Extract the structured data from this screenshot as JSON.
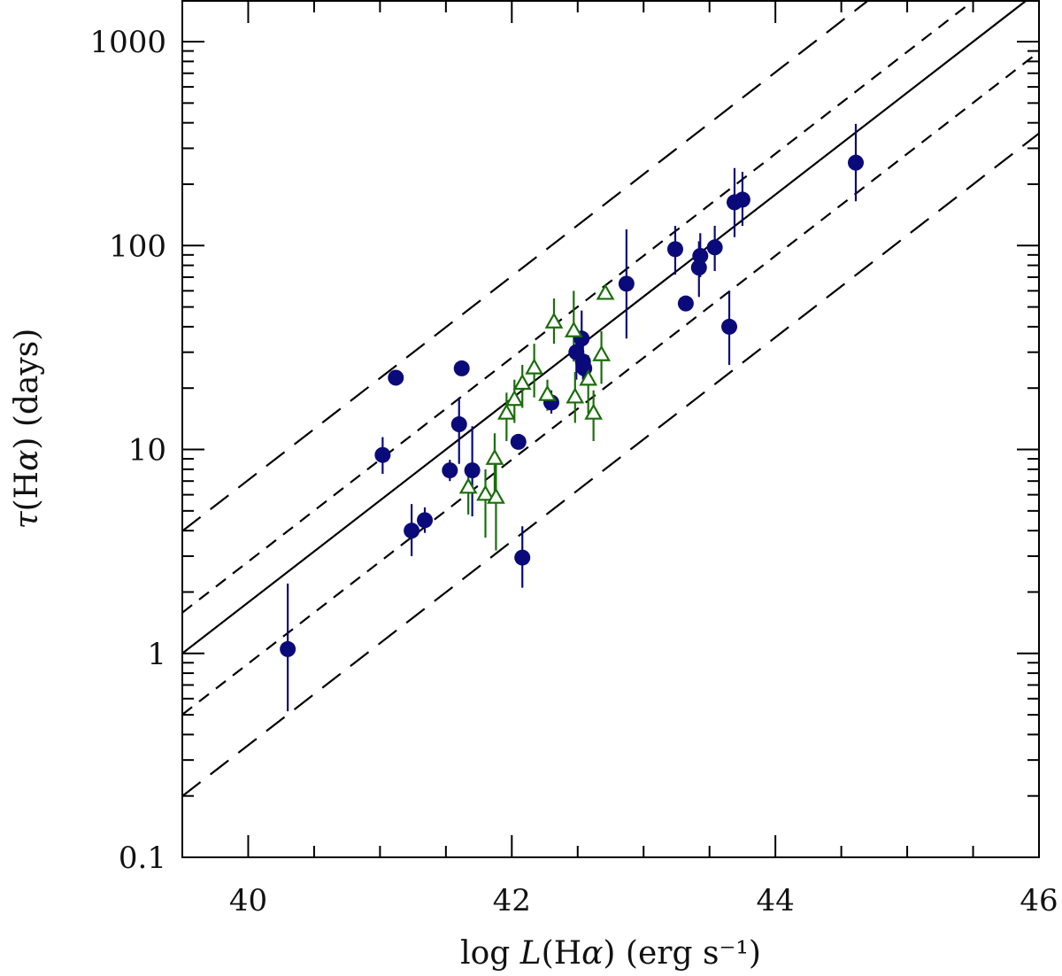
{
  "chart_data": {
    "type": "scatter",
    "title": "",
    "xlabel": {
      "prefix": "log ",
      "var": "L",
      "paren_open": "(H",
      "alpha": "α",
      "paren_close": ")",
      "units": " (erg s⁻¹)"
    },
    "ylabel": {
      "var": "τ",
      "paren_open": "(H",
      "alpha": "α",
      "paren_close": ")",
      "units": " (days)"
    },
    "xlim": [
      39.5,
      46.0
    ],
    "ylim_log10": [
      -1,
      3.2
    ],
    "yscale": "log",
    "x_major_ticks": [
      40,
      42,
      44,
      46
    ],
    "x_major_labels": [
      "40",
      "42",
      "44",
      "46"
    ],
    "x_minor_ticks": [
      39.5,
      40.5,
      41,
      41.5,
      42.5,
      43,
      43.5,
      44.5,
      45,
      45.5
    ],
    "y_major_ticks": [
      0.1,
      1,
      10,
      100,
      1000
    ],
    "y_major_labels": [
      "0.1",
      "1",
      "10",
      "100",
      "1000"
    ],
    "colors": {
      "circles": "#0a0a7a",
      "triangles": "#1a6e0a",
      "lines": "#000000"
    },
    "relation": {
      "slope": 0.5,
      "anchor_x": 39.5,
      "anchor_log_tau": 0.0,
      "lines": [
        {
          "name": "best-fit",
          "offset_dex": 0.0,
          "style": "solid"
        },
        {
          "name": "plus-1-sigma",
          "offset_dex": 0.2,
          "style": "short-dash"
        },
        {
          "name": "minus-1-sigma",
          "offset_dex": -0.3,
          "style": "short-dash"
        },
        {
          "name": "plus-2-sigma",
          "offset_dex": 0.6,
          "style": "long-dash"
        },
        {
          "name": "minus-2-sigma",
          "offset_dex": -0.7,
          "style": "long-dash"
        }
      ]
    },
    "series": [
      {
        "name": "circles",
        "marker": "filled-circle",
        "points": [
          {
            "x": 40.3,
            "y": 1.05,
            "ylo": 0.52,
            "yhi": 2.2
          },
          {
            "x": 41.02,
            "y": 9.4,
            "ylo": 7.6,
            "yhi": 11.5
          },
          {
            "x": 41.12,
            "y": 22.5,
            "ylo": 22.5,
            "yhi": 22.5
          },
          {
            "x": 41.24,
            "y": 4.0,
            "ylo": 3.0,
            "yhi": 5.4
          },
          {
            "x": 41.34,
            "y": 4.5,
            "ylo": 3.9,
            "yhi": 5.2
          },
          {
            "x": 41.53,
            "y": 7.9,
            "ylo": 7.0,
            "yhi": 8.9
          },
          {
            "x": 41.6,
            "y": 13.3,
            "ylo": 8.5,
            "yhi": 18.0
          },
          {
            "x": 41.62,
            "y": 25.0,
            "ylo": 25.0,
            "yhi": 25.0
          },
          {
            "x": 41.7,
            "y": 7.9,
            "ylo": 4.7,
            "yhi": 13.0
          },
          {
            "x": 42.05,
            "y": 10.9,
            "ylo": 10.0,
            "yhi": 11.8
          },
          {
            "x": 42.08,
            "y": 2.95,
            "ylo": 2.1,
            "yhi": 4.2
          },
          {
            "x": 42.3,
            "y": 17.0,
            "ylo": 15.0,
            "yhi": 19.5
          },
          {
            "x": 42.49,
            "y": 30.0,
            "ylo": 22.0,
            "yhi": 38.0
          },
          {
            "x": 42.53,
            "y": 35.0,
            "ylo": 24.0,
            "yhi": 48.0
          },
          {
            "x": 42.54,
            "y": 27.0,
            "ylo": 22.0,
            "yhi": 33.0
          },
          {
            "x": 42.55,
            "y": 25.0,
            "ylo": 22.0,
            "yhi": 28.0
          },
          {
            "x": 42.87,
            "y": 65.0,
            "ylo": 35.0,
            "yhi": 120.0
          },
          {
            "x": 43.24,
            "y": 96.0,
            "ylo": 72.0,
            "yhi": 125.0
          },
          {
            "x": 43.32,
            "y": 52.0,
            "ylo": 52.0,
            "yhi": 52.0
          },
          {
            "x": 43.42,
            "y": 78.0,
            "ylo": 56.0,
            "yhi": 105.0
          },
          {
            "x": 43.43,
            "y": 89.0,
            "ylo": 70.0,
            "yhi": 115.0
          },
          {
            "x": 43.54,
            "y": 98.0,
            "ylo": 75.0,
            "yhi": 125.0
          },
          {
            "x": 43.65,
            "y": 40.0,
            "ylo": 26.0,
            "yhi": 60.0
          },
          {
            "x": 43.69,
            "y": 163.0,
            "ylo": 110.0,
            "yhi": 240.0
          },
          {
            "x": 43.75,
            "y": 168.0,
            "ylo": 125.0,
            "yhi": 230.0
          },
          {
            "x": 44.61,
            "y": 255.0,
            "ylo": 165.0,
            "yhi": 395.0
          }
        ]
      },
      {
        "name": "triangles",
        "marker": "open-triangle",
        "points": [
          {
            "x": 41.67,
            "y": 6.5,
            "ylo": 4.8,
            "yhi": 8.5
          },
          {
            "x": 41.8,
            "y": 6.0,
            "ylo": 3.7,
            "yhi": 8.0
          },
          {
            "x": 41.87,
            "y": 9.0,
            "ylo": 6.0,
            "yhi": 12.0
          },
          {
            "x": 41.88,
            "y": 5.8,
            "ylo": 3.2,
            "yhi": 8.5
          },
          {
            "x": 41.96,
            "y": 15.0,
            "ylo": 11.0,
            "yhi": 19.0
          },
          {
            "x": 42.02,
            "y": 17.5,
            "ylo": 13.5,
            "yhi": 22.0
          },
          {
            "x": 42.08,
            "y": 21.0,
            "ylo": 16.0,
            "yhi": 26.0
          },
          {
            "x": 42.17,
            "y": 25.0,
            "ylo": 18.0,
            "yhi": 33.0
          },
          {
            "x": 42.27,
            "y": 18.5,
            "ylo": 15.5,
            "yhi": 22.0
          },
          {
            "x": 42.32,
            "y": 42.0,
            "ylo": 33.0,
            "yhi": 55.0
          },
          {
            "x": 42.47,
            "y": 38.0,
            "ylo": 27.0,
            "yhi": 60.0
          },
          {
            "x": 42.48,
            "y": 18.0,
            "ylo": 13.5,
            "yhi": 24.0
          },
          {
            "x": 42.58,
            "y": 22.0,
            "ylo": 15.0,
            "yhi": 29.0
          },
          {
            "x": 42.62,
            "y": 15.0,
            "ylo": 11.0,
            "yhi": 19.5
          },
          {
            "x": 42.68,
            "y": 29.0,
            "ylo": 21.0,
            "yhi": 38.0
          },
          {
            "x": 42.71,
            "y": 58.0,
            "ylo": 58.0,
            "yhi": 58.0
          }
        ]
      }
    ]
  }
}
